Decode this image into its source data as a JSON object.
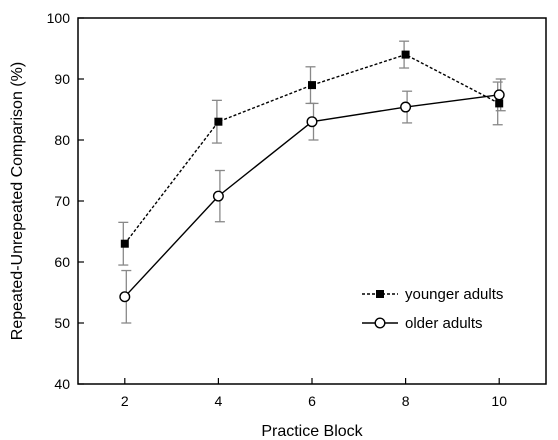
{
  "chart_data": {
    "type": "line",
    "xlabel": "Practice Block",
    "ylabel": "Repeated-Unrepeated Comparison (%)",
    "xlim": [
      1,
      11
    ],
    "ylim": [
      40,
      100
    ],
    "x_ticks": [
      2,
      4,
      6,
      8,
      10
    ],
    "y_ticks": [
      40,
      50,
      60,
      70,
      80,
      90,
      100
    ],
    "grid": false,
    "legend_position": "bottom-right",
    "x": [
      2,
      4,
      6,
      8,
      10
    ],
    "series": [
      {
        "name": "younger adults",
        "line_style": "dashed",
        "marker": "filled-square",
        "color": "#000000",
        "values": [
          63,
          83,
          89,
          94,
          86
        ],
        "error": [
          3.5,
          3.5,
          3,
          2.2,
          3.5
        ]
      },
      {
        "name": "older adults",
        "line_style": "solid",
        "marker": "open-circle",
        "color": "#000000",
        "values": [
          54.3,
          70.8,
          83,
          85.4,
          87.4
        ],
        "error": [
          4.3,
          4.2,
          3,
          2.6,
          2.6
        ]
      }
    ],
    "error_bar_color": "#888888"
  }
}
